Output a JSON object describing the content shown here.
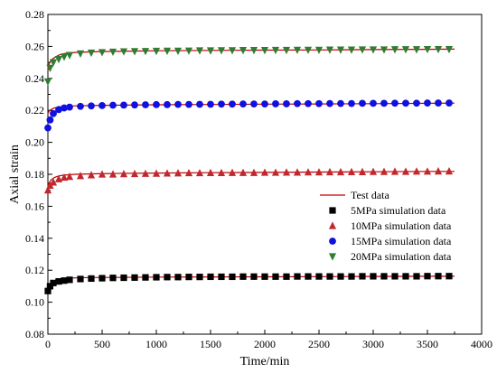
{
  "chart_data": {
    "type": "scatter",
    "xlabel": "Time/min",
    "ylabel": "Axial strain",
    "xlim": [
      0,
      4000
    ],
    "ylim": [
      0.08,
      0.28
    ],
    "xticks": [
      "0",
      "500",
      "1000",
      "1500",
      "2000",
      "2500",
      "3000",
      "3500",
      "4000"
    ],
    "yticks": [
      "0.08",
      "0.10",
      "0.12",
      "0.14",
      "0.16",
      "0.18",
      "0.20",
      "0.22",
      "0.24",
      "0.26",
      "0.28"
    ],
    "grid": false,
    "legend_position": "right-center",
    "series": [
      {
        "name": "Test data",
        "kind": "line",
        "color": "#c00000",
        "curves": [
          {
            "x": [
              0,
              10,
              30,
              60,
              100,
              150,
              250,
              400,
              600,
              1000,
              1500,
              2000,
              2500,
              3000,
              3500,
              3750
            ],
            "y": [
              0.108,
              0.11,
              0.112,
              0.1135,
              0.1145,
              0.115,
              0.1152,
              0.1154,
              0.1155,
              0.1157,
              0.1158,
              0.1159,
              0.116,
              0.1161,
              0.1162,
              0.1162
            ]
          },
          {
            "x": [
              0,
              10,
              30,
              60,
              100,
              150,
              250,
              400,
              600,
              1000,
              1500,
              2000,
              2500,
              3000,
              3500,
              3750
            ],
            "y": [
              0.172,
              0.1745,
              0.1765,
              0.178,
              0.179,
              0.1795,
              0.18,
              0.1803,
              0.1805,
              0.1808,
              0.181,
              0.1812,
              0.1814,
              0.1816,
              0.1818,
              0.1818
            ]
          },
          {
            "x": [
              0,
              10,
              30,
              60,
              100,
              150,
              250,
              400,
              600,
              1000,
              1500,
              2000,
              2500,
              3000,
              3500,
              3750
            ],
            "y": [
              0.218,
              0.2195,
              0.2205,
              0.2215,
              0.222,
              0.2225,
              0.2228,
              0.223,
              0.2232,
              0.2235,
              0.2237,
              0.2239,
              0.224,
              0.2242,
              0.2244,
              0.2245
            ]
          },
          {
            "x": [
              0,
              10,
              30,
              60,
              100,
              150,
              250,
              400,
              600,
              1000,
              1500,
              2000,
              2500,
              3000,
              3500,
              3750
            ],
            "y": [
              0.245,
              0.249,
              0.2515,
              0.253,
              0.2545,
              0.2555,
              0.2562,
              0.2566,
              0.2569,
              0.2573,
              0.2575,
              0.2577,
              0.2578,
              0.258,
              0.2582,
              0.2583
            ]
          }
        ]
      },
      {
        "name": "5MPa simulation data",
        "kind": "points",
        "marker": "square",
        "color": "#000000",
        "x": [
          0,
          20,
          50,
          100,
          150,
          200,
          300,
          400,
          500,
          600,
          700,
          800,
          900,
          1000,
          1100,
          1200,
          1300,
          1400,
          1500,
          1600,
          1700,
          1800,
          1900,
          2000,
          2100,
          2200,
          2300,
          2400,
          2500,
          2600,
          2700,
          2800,
          2900,
          3000,
          3100,
          3200,
          3300,
          3400,
          3500,
          3600,
          3700
        ],
        "y": [
          0.107,
          0.11,
          0.112,
          0.113,
          0.1135,
          0.114,
          0.1145,
          0.1148,
          0.115,
          0.1152,
          0.1153,
          0.1154,
          0.1155,
          0.1156,
          0.1157,
          0.1157,
          0.1158,
          0.1158,
          0.1159,
          0.1159,
          0.1159,
          0.116,
          0.116,
          0.116,
          0.116,
          0.116,
          0.1161,
          0.1161,
          0.1161,
          0.1161,
          0.1161,
          0.1161,
          0.1162,
          0.1162,
          0.1162,
          0.1162,
          0.1162,
          0.1162,
          0.1163,
          0.1163,
          0.1163
        ]
      },
      {
        "name": "10MPa simulation data",
        "kind": "points",
        "marker": "triangle-up",
        "color": "#c0282d",
        "x": [
          0,
          20,
          50,
          100,
          150,
          200,
          300,
          400,
          500,
          600,
          700,
          800,
          900,
          1000,
          1100,
          1200,
          1300,
          1400,
          1500,
          1600,
          1700,
          1800,
          1900,
          2000,
          2100,
          2200,
          2300,
          2400,
          2500,
          2600,
          2700,
          2800,
          2900,
          3000,
          3100,
          3200,
          3300,
          3400,
          3500,
          3600,
          3700
        ],
        "y": [
          0.17,
          0.173,
          0.175,
          0.177,
          0.178,
          0.1785,
          0.179,
          0.1795,
          0.18,
          0.18,
          0.1802,
          0.1803,
          0.1804,
          0.1805,
          0.1806,
          0.1807,
          0.1808,
          0.1808,
          0.1809,
          0.1809,
          0.181,
          0.181,
          0.181,
          0.1811,
          0.1811,
          0.1812,
          0.1812,
          0.1813,
          0.1813,
          0.1814,
          0.1814,
          0.1815,
          0.1815,
          0.1816,
          0.1816,
          0.1817,
          0.1817,
          0.1818,
          0.1818,
          0.1819,
          0.1819
        ]
      },
      {
        "name": "15MPa simulation data",
        "kind": "points",
        "marker": "circle",
        "color": "#1010e0",
        "x": [
          0,
          20,
          50,
          100,
          150,
          200,
          300,
          400,
          500,
          600,
          700,
          800,
          900,
          1000,
          1100,
          1200,
          1300,
          1400,
          1500,
          1600,
          1700,
          1800,
          1900,
          2000,
          2100,
          2200,
          2300,
          2400,
          2500,
          2600,
          2700,
          2800,
          2900,
          3000,
          3100,
          3200,
          3300,
          3400,
          3500,
          3600,
          3700
        ],
        "y": [
          0.209,
          0.214,
          0.218,
          0.2205,
          0.2215,
          0.222,
          0.2225,
          0.2228,
          0.223,
          0.2232,
          0.2233,
          0.2234,
          0.2235,
          0.2236,
          0.2236,
          0.2237,
          0.2237,
          0.2238,
          0.2238,
          0.2239,
          0.2239,
          0.224,
          0.224,
          0.224,
          0.2241,
          0.2241,
          0.2242,
          0.2242,
          0.2242,
          0.2243,
          0.2243,
          0.2243,
          0.2244,
          0.2244,
          0.2244,
          0.2245,
          0.2245,
          0.2245,
          0.2246,
          0.2246,
          0.2246
        ]
      },
      {
        "name": "20MPa simulation data",
        "kind": "points",
        "marker": "triangle-down",
        "color": "#2e7d32",
        "x": [
          0,
          20,
          50,
          100,
          150,
          200,
          300,
          400,
          500,
          600,
          700,
          800,
          900,
          1000,
          1100,
          1200,
          1300,
          1400,
          1500,
          1600,
          1700,
          1800,
          1900,
          2000,
          2100,
          2200,
          2300,
          2400,
          2500,
          2600,
          2700,
          2800,
          2900,
          3000,
          3100,
          3200,
          3300,
          3400,
          3500,
          3600,
          3700
        ],
        "y": [
          0.238,
          0.2465,
          0.25,
          0.252,
          0.2535,
          0.2545,
          0.2555,
          0.256,
          0.2563,
          0.2566,
          0.2568,
          0.2569,
          0.257,
          0.2571,
          0.2572,
          0.2572,
          0.2573,
          0.2574,
          0.2574,
          0.2575,
          0.2575,
          0.2576,
          0.2576,
          0.2576,
          0.2577,
          0.2577,
          0.2578,
          0.2578,
          0.2578,
          0.2579,
          0.2579,
          0.2579,
          0.258,
          0.258,
          0.258,
          0.2581,
          0.2581,
          0.2581,
          0.2582,
          0.2582,
          0.2582
        ]
      }
    ]
  }
}
